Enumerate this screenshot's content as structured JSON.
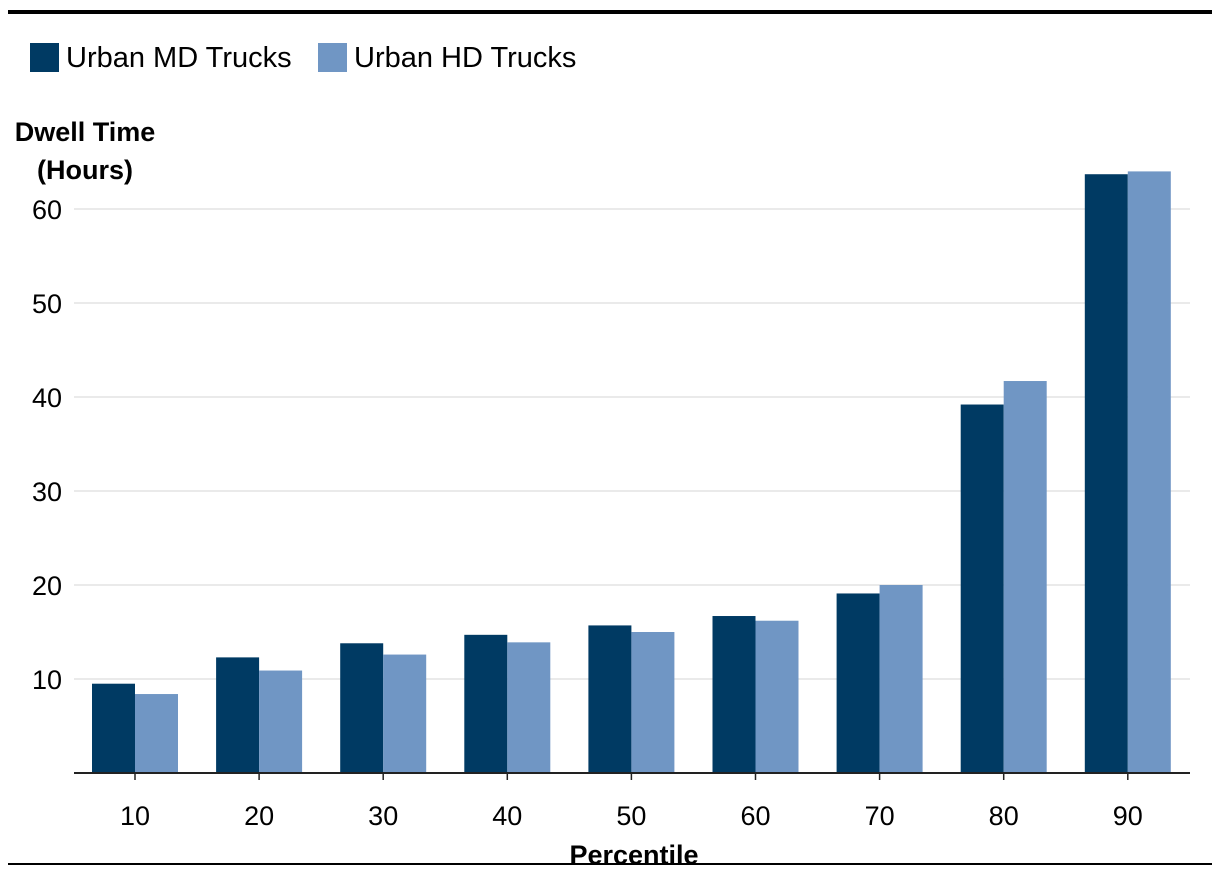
{
  "chart_data": {
    "type": "bar",
    "title": "",
    "xlabel": "Percentile",
    "ylabel": "Dwell Time (Hours)",
    "ylabel_lines": [
      "Dwell Time",
      "(Hours)"
    ],
    "categories": [
      "10",
      "20",
      "30",
      "40",
      "50",
      "60",
      "70",
      "80",
      "90"
    ],
    "series": [
      {
        "name": "Urban MD Trucks",
        "color": "#003a63",
        "values": [
          9.5,
          12.3,
          13.8,
          14.7,
          15.7,
          16.7,
          19.1,
          39.2,
          63.7
        ]
      },
      {
        "name": "Urban HD Trucks",
        "color": "#7096c4",
        "values": [
          8.4,
          10.9,
          12.6,
          13.9,
          15.0,
          16.2,
          20.0,
          41.7,
          64.0
        ]
      }
    ],
    "ylim": [
      0,
      65
    ],
    "yticks": [
      10,
      20,
      30,
      40,
      50,
      60
    ],
    "grid": true,
    "legend_position": "top-left",
    "colors": {
      "grid": "#e3e3e3",
      "axis": "#222222",
      "rule": "#000000"
    }
  }
}
